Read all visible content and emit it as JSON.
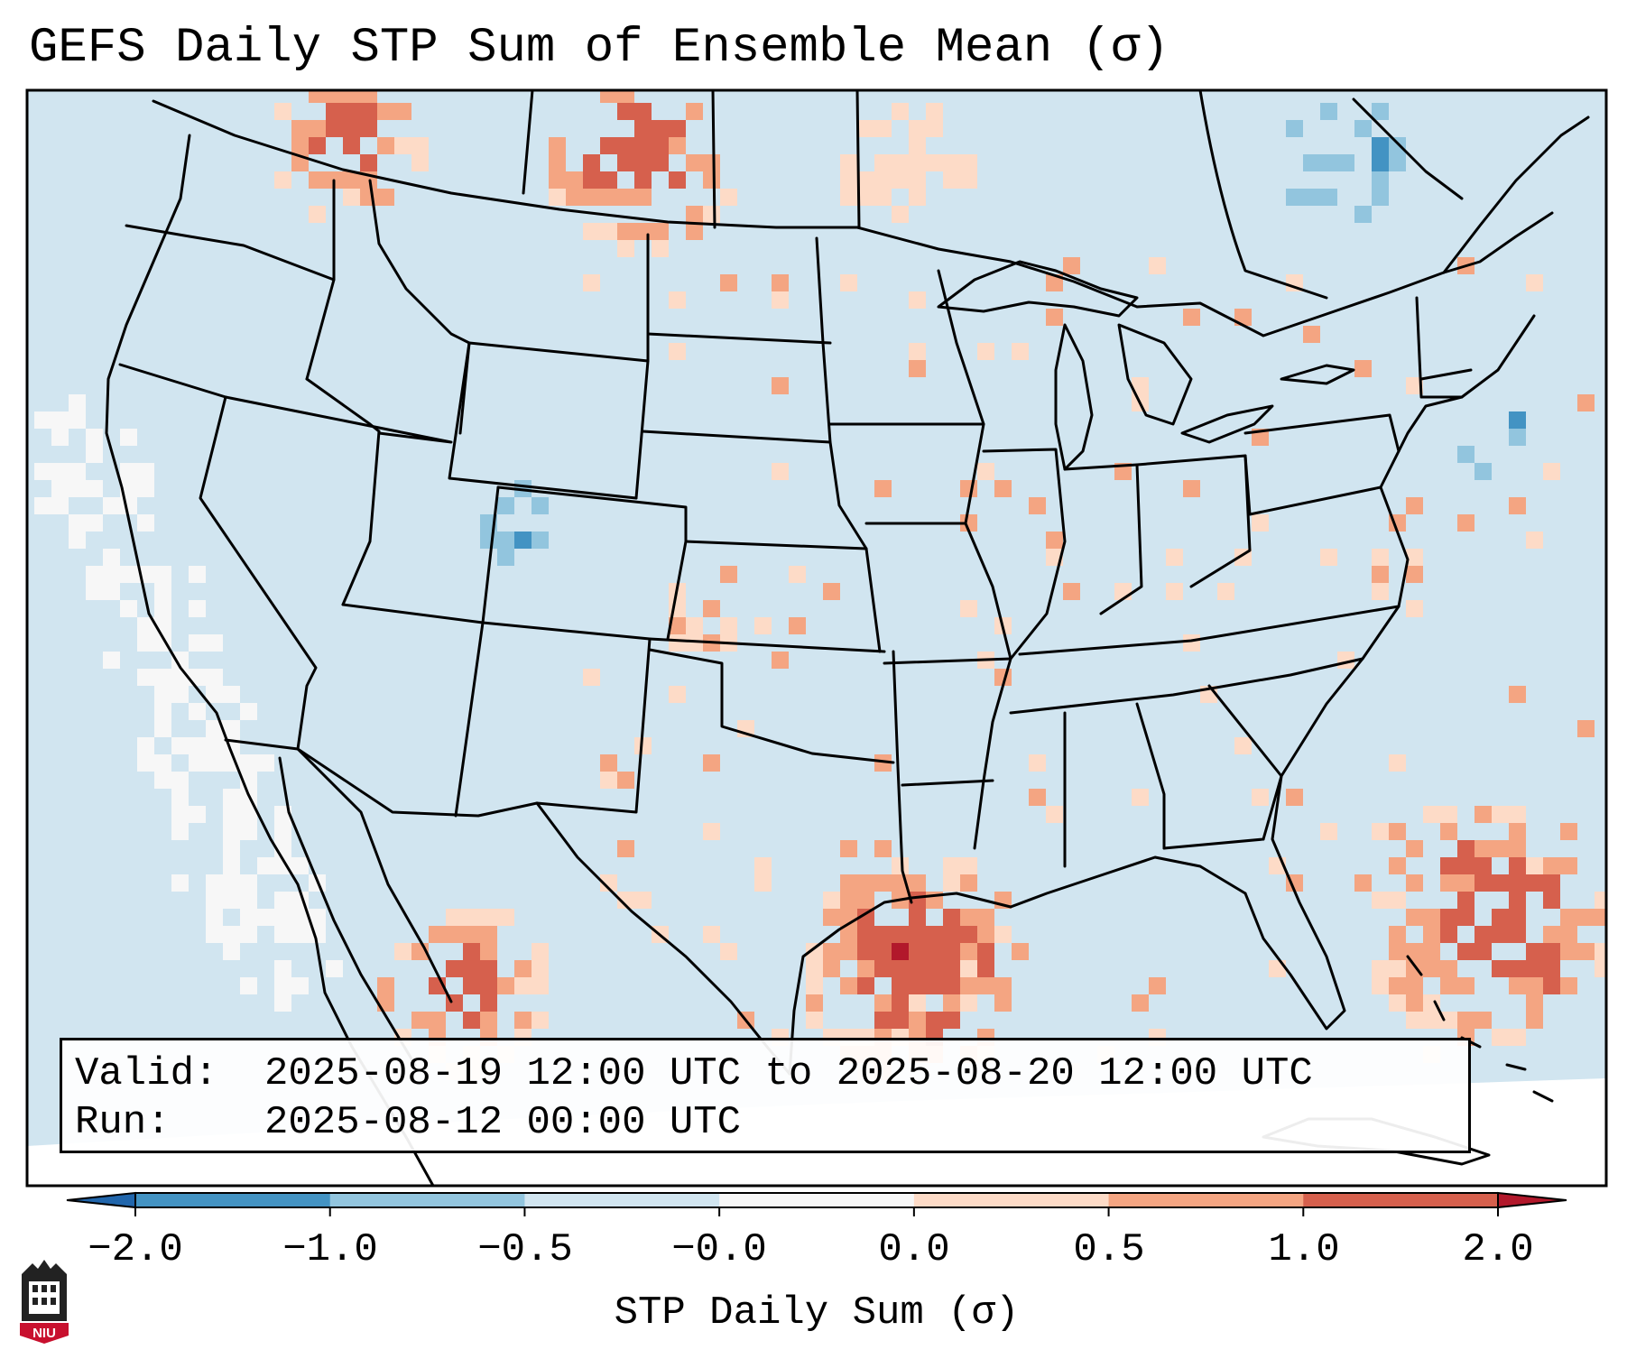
{
  "title": "GEFS Daily STP Sum of Ensemble Mean (σ)",
  "info": {
    "valid_label": "Valid:",
    "valid_value": "2025-08-19 12:00 UTC to 2025-08-20 12:00 UTC",
    "run_label": "Run:",
    "run_value": "2025-08-12 00:00 UTC"
  },
  "colorbar": {
    "label": "STP Daily Sum (σ)",
    "ticks": [
      "−2.0",
      "−1.0",
      "−0.5",
      "−0.0",
      "0.0",
      "0.5",
      "1.0",
      "2.0"
    ],
    "colors": [
      "#4393c3",
      "#92c5de",
      "#d1e5f0",
      "#f7f7f7",
      "#fddbc7",
      "#f4a582",
      "#d6604d"
    ],
    "extend_low_color": "#2166ac",
    "extend_high_color": "#b2182b"
  },
  "map": {
    "background_color": "#d1e5f0",
    "offgrid_color": "#ffffff",
    "region": "Contiguous United States",
    "hotspots": [
      {
        "area": "Pacific Northwest",
        "level": 1.5
      },
      {
        "area": "Southern Alberta / Saskatchewan / Montana border",
        "level": 2.0
      },
      {
        "area": "North Dakota",
        "level": 0.5
      },
      {
        "area": "Southeast Colorado",
        "level": 1.0
      },
      {
        "area": "Upper Texas coast / NW Gulf of Mexico",
        "level": 2.0
      },
      {
        "area": "Sierra Madre / NW Mexico",
        "level": 1.5
      },
      {
        "area": "Western Atlantic near Bahamas",
        "level": 2.0
      },
      {
        "area": "Central Alabama",
        "level": 1.0
      }
    ],
    "negative_areas": [
      {
        "area": "Southern New England",
        "level": -1.0
      },
      {
        "area": "Eastern Canada",
        "level": -1.0
      },
      {
        "area": "Colorado Rockies",
        "level": -1.0
      }
    ],
    "near_zero_areas": [
      {
        "area": "Pacific off California / Baja",
        "level": -0.1
      }
    ]
  },
  "logo": {
    "text": "NIU"
  }
}
